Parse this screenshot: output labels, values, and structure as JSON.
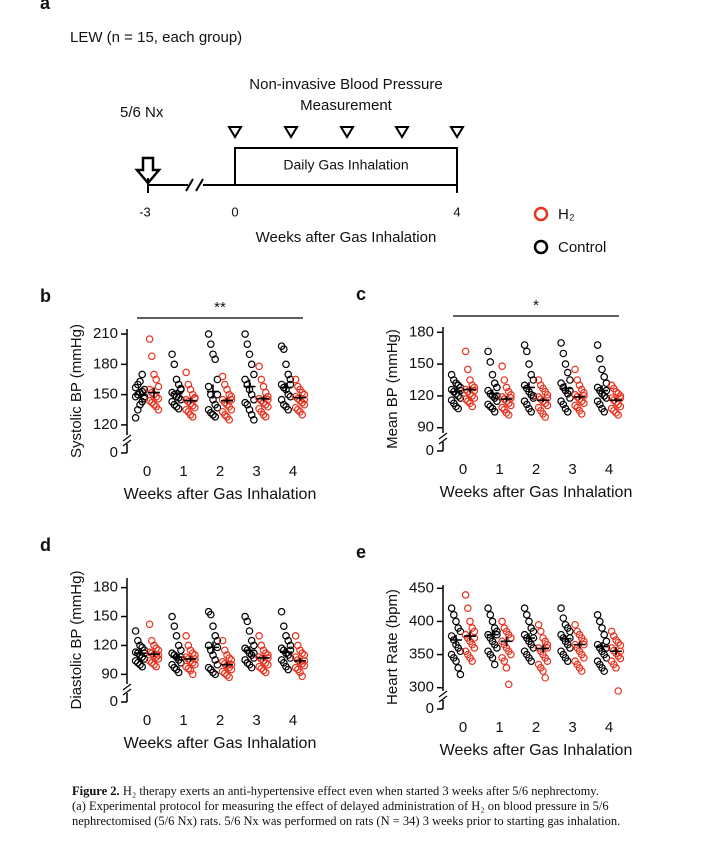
{
  "panel_a": {
    "label": "a",
    "group": "LEW (n = 15, each group)",
    "measurement": [
      "Non-invasive Blood Pressure",
      "Measurement"
    ],
    "surgery": "5/6 Nx",
    "box": "Daily Gas Inhalation",
    "ticks": [
      "-3",
      "0",
      "4"
    ],
    "xlabel": "Weeks after Gas Inhalation"
  },
  "chart_data": [
    {
      "type": "dot",
      "panel": "b",
      "ylabel": "Systolic BP (mmHg)",
      "xlabel": "Weeks after Gas Inhalation",
      "significance": "**",
      "categories": [
        "0",
        "1",
        "2",
        "3",
        "4"
      ],
      "ylim": [
        110,
        215
      ],
      "yticks": [
        0,
        120,
        150,
        180,
        210
      ],
      "axis_break": true,
      "series": [
        {
          "name": "Control",
          "color": "#000000",
          "values": [
            [
              127,
              135,
              140,
              143,
              146,
              148,
              150,
              152,
              153,
              155,
              157,
              160,
              163,
              170,
              148
            ],
            [
              190,
              180,
              165,
              160,
              156,
              152,
              150,
              148,
              147,
              145,
              143,
              140,
              138,
              136,
              155
            ],
            [
              210,
              200,
              190,
              185,
              165,
              158,
              150,
              145,
              140,
              137,
              135,
              132,
              130,
              128,
              150
            ],
            [
              210,
              200,
              190,
              180,
              170,
              165,
              160,
              155,
              150,
              145,
              142,
              140,
              135,
              130,
              125
            ],
            [
              198,
              195,
              180,
              170,
              165,
              160,
              157,
              155,
              150,
              148,
              145,
              140,
              138,
              135,
              160
            ]
          ],
          "means": [
            150,
            151,
            153,
            158,
            157
          ],
          "errors": [
            4,
            4,
            7,
            7,
            5
          ]
        },
        {
          "name": "H₂",
          "color": "#e8321e",
          "values": [
            [
              205,
              188,
              170,
              165,
              158,
              155,
              152,
              150,
              148,
              146,
              144,
              142,
              140,
              138,
              135
            ],
            [
              172,
              160,
              155,
              150,
              147,
              145,
              143,
              141,
              139,
              137,
              135,
              133,
              130,
              128,
              146
            ],
            [
              168,
              160,
              155,
              150,
              148,
              145,
              142,
              140,
              138,
              135,
              133,
              130,
              128,
              125,
              145
            ],
            [
              178,
              165,
              158,
              152,
              148,
              146,
              144,
              142,
              140,
              138,
              136,
              133,
              130,
              128,
              145
            ],
            [
              165,
              158,
              155,
              152,
              150,
              148,
              146,
              144,
              142,
              140,
              137,
              135,
              133,
              130,
              145
            ]
          ],
          "means": [
            152,
            144,
            144,
            146,
            147
          ],
          "errors": [
            5,
            3,
            3,
            3,
            3
          ]
        }
      ]
    },
    {
      "type": "dot",
      "panel": "c",
      "ylabel": "Mean BP (mmHg)",
      "xlabel": "Weeks after Gas Inhalation",
      "significance": "*",
      "categories": [
        "0",
        "1",
        "2",
        "3",
        "4"
      ],
      "ylim": [
        85,
        185
      ],
      "yticks": [
        0,
        90,
        120,
        150,
        180
      ],
      "axis_break": true,
      "series": [
        {
          "name": "Control",
          "color": "#000000",
          "values": [
            [
              140,
              135,
              132,
              130,
              128,
              126,
              124,
              122,
              120,
              118,
              116,
              113,
              110,
              108,
              125
            ],
            [
              162,
              152,
              140,
              132,
              128,
              125,
              122,
              120,
              118,
              115,
              112,
              110,
              108,
              105,
              120
            ],
            [
              168,
              162,
              150,
              140,
              135,
              130,
              127,
              124,
              121,
              118,
              115,
              112,
              108,
              105,
              120
            ],
            [
              170,
              160,
              150,
              142,
              135,
              132,
              128,
              125,
              122,
              118,
              115,
              112,
              108,
              105,
              125
            ],
            [
              168,
              155,
              145,
              138,
              132,
              128,
              125,
              122,
              120,
              118,
              115,
              112,
              108,
              105,
              125
            ]
          ],
          "means": [
            124,
            122,
            128,
            127,
            125
          ],
          "errors": [
            3,
            4,
            5,
            5,
            5
          ]
        },
        {
          "name": "H₂",
          "color": "#e8321e",
          "values": [
            [
              162,
              145,
              135,
              130,
              128,
              126,
              124,
              122,
              120,
              118,
              117,
              115,
              113,
              110,
              125
            ],
            [
              148,
              135,
              128,
              124,
              121,
              119,
              117,
              115,
              113,
              111,
              109,
              107,
              104,
              102,
              118
            ],
            [
              135,
              130,
              127,
              124,
              121,
              119,
              117,
              115,
              113,
              111,
              109,
              106,
              103,
              100,
              118
            ],
            [
              145,
              135,
              130,
              126,
              123,
              121,
              119,
              117,
              115,
              113,
              111,
              109,
              106,
              103,
              120
            ],
            [
              130,
              127,
              124,
              122,
              120,
              118,
              116,
              114,
              112,
              110,
              108,
              106,
              104,
              102,
              118
            ]
          ],
          "means": [
            126,
            117,
            116,
            119,
            116
          ],
          "errors": [
            3,
            3,
            2,
            3,
            2
          ]
        }
      ]
    },
    {
      "type": "dot",
      "panel": "d",
      "ylabel": "Diastolic BP (mmHg)",
      "xlabel": "Weeks after Gas Inhalation",
      "categories": [
        "0",
        "1",
        "2",
        "3",
        "4"
      ],
      "ylim": [
        80,
        190
      ],
      "yticks": [
        0,
        90,
        120,
        150,
        180
      ],
      "axis_break": true,
      "series": [
        {
          "name": "Control",
          "color": "#000000",
          "values": [
            [
              135,
              125,
              120,
              118,
              115,
              113,
              112,
              110,
              108,
              106,
              104,
              102,
              100,
              98,
              112
            ],
            [
              150,
              140,
              130,
              120,
              115,
              112,
              110,
              108,
              105,
              102,
              100,
              97,
              95,
              92,
              108
            ],
            [
              155,
              152,
              140,
              130,
              125,
              120,
              115,
              110,
              105,
              100,
              97,
              95,
              92,
              90,
              118
            ],
            [
              150,
              145,
              135,
              125,
              120,
              117,
              115,
              112,
              110,
              107,
              105,
              102,
              100,
              97,
              112
            ],
            [
              155,
              140,
              130,
              125,
              120,
              117,
              115,
              112,
              110,
              107,
              105,
              102,
              98,
              95,
              115
            ]
          ],
          "means": [
            112,
            108,
            118,
            115,
            113
          ],
          "errors": [
            3,
            4,
            6,
            4,
            4
          ]
        },
        {
          "name": "H₂",
          "color": "#e8321e",
          "values": [
            [
              142,
              125,
              120,
              117,
              115,
              113,
              112,
              110,
              108,
              106,
              104,
              102,
              100,
              98,
              110
            ],
            [
              130,
              120,
              115,
              112,
              110,
              108,
              106,
              104,
              102,
              100,
              98,
              96,
              94,
              90,
              106
            ],
            [
              125,
              115,
              110,
              107,
              105,
              103,
              101,
              99,
              97,
              95,
              93,
              91,
              89,
              87,
              100
            ],
            [
              130,
              120,
              115,
              112,
              110,
              108,
              106,
              104,
              102,
              100,
              98,
              96,
              94,
              92,
              107
            ],
            [
              130,
              120,
              115,
              112,
              110,
              108,
              105,
              103,
              101,
              99,
              97,
              95,
              92,
              88,
              104
            ]
          ],
          "means": [
            111,
            106,
            100,
            107,
            104
          ],
          "errors": [
            3,
            3,
            3,
            3,
            3
          ]
        }
      ]
    },
    {
      "type": "dot",
      "panel": "e",
      "ylabel": "Heart Rate (bpm)",
      "xlabel": "Weeks after Gas Inhalation",
      "categories": [
        "0",
        "1",
        "2",
        "3",
        "4"
      ],
      "ylim": [
        295,
        455
      ],
      "yticks": [
        0,
        300,
        350,
        400,
        450
      ],
      "axis_break": true,
      "series": [
        {
          "name": "Control",
          "color": "#000000",
          "values": [
            [
              420,
              410,
              400,
              390,
              385,
              378,
              372,
              365,
              360,
              355,
              350,
              345,
              340,
              330,
              320
            ],
            [
              420,
              410,
              400,
              390,
              385,
              380,
              375,
              370,
              365,
              360,
              355,
              350,
              345,
              335,
              380
            ],
            [
              420,
              410,
              400,
              390,
              385,
              380,
              375,
              370,
              365,
              360,
              355,
              350,
              345,
              340,
              375
            ],
            [
              420,
              405,
              395,
              390,
              385,
              380,
              375,
              370,
              365,
              360,
              355,
              350,
              345,
              340,
              375
            ],
            [
              410,
              400,
              390,
              380,
              370,
              365,
              360,
              355,
              350,
              345,
              340,
              335,
              330,
              325,
              360
            ]
          ],
          "means": [
            372,
            380,
            375,
            374,
            362
          ],
          "errors": [
            8,
            7,
            7,
            6,
            7
          ]
        },
        {
          "name": "H₂",
          "color": "#e8321e",
          "values": [
            [
              440,
              420,
              400,
              390,
              385,
              380,
              375,
              370,
              365,
              360,
              355,
              350,
              345,
              340,
              375
            ],
            [
              400,
              390,
              385,
              380,
              375,
              370,
              365,
              360,
              355,
              350,
              345,
              340,
              330,
              305,
              375
            ],
            [
              395,
              385,
              375,
              370,
              365,
              360,
              355,
              350,
              345,
              340,
              335,
              330,
              325,
              315,
              360
            ],
            [
              395,
              385,
              380,
              375,
              370,
              365,
              360,
              355,
              350,
              345,
              340,
              335,
              330,
              325,
              365
            ],
            [
              385,
              378,
              372,
              368,
              364,
              360,
              356,
              352,
              348,
              344,
              340,
              335,
              330,
              295,
              355
            ]
          ],
          "means": [
            378,
            370,
            359,
            365,
            355
          ],
          "errors": [
            7,
            7,
            6,
            5,
            6
          ]
        }
      ]
    }
  ],
  "caption": {
    "label": "Figure 2.",
    "lines": [
      "H₂ therapy exerts an anti-hypertensive effect even when started 3 weeks after 5/6 nephrectomy.",
      "(a) Experimental protocol for measuring the effect of delayed administration of H₂ on blood pressure in 5/6",
      "nephrectomised (5/6 Nx) rats. 5/6 Nx was performed on rats (N = 34) 3 weeks prior to starting gas inhalation."
    ]
  }
}
